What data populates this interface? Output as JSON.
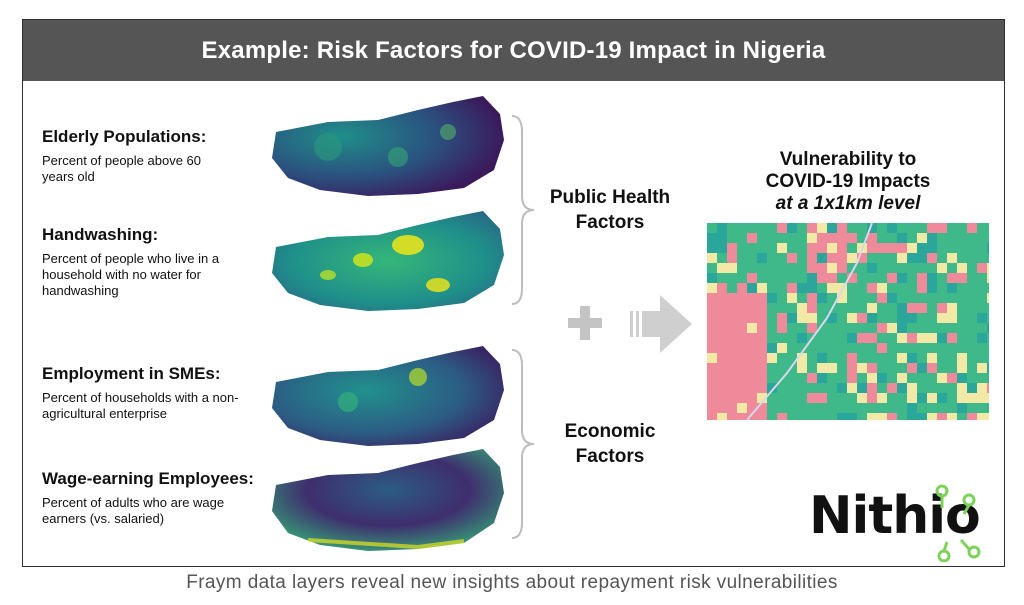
{
  "header": {
    "title": "Example: Risk Factors for COVID-19 Impact in Nigeria"
  },
  "factors": [
    {
      "title": "Elderly Populations:",
      "desc": "Percent of people above 60 years old"
    },
    {
      "title": "Handwashing:",
      "desc": "Percent of people who live in a household with no water for handwashing"
    },
    {
      "title": "Employment in SMEs:",
      "desc": "Percent of households with a non-agricultural enterprise"
    },
    {
      "title": "Wage-earning Employees:",
      "desc": "Percent of adults who are wage earners (vs. salaried)"
    }
  ],
  "groups": {
    "public_health": {
      "line1": "Public Health",
      "line2": "Factors"
    },
    "economic": {
      "line1": "Economic",
      "line2": "Factors"
    }
  },
  "vulnerability": {
    "line1": "Vulnerability to",
    "line2": "COVID-19 Impacts",
    "line3": "at a 1x1km level"
  },
  "logo": {
    "text": "Nithio"
  },
  "caption": "Fraym data layers reveal new insights about repayment risk vulnerabilities",
  "colors": {
    "header_bg": "#555555",
    "map_dark": "#3b1a5c",
    "map_teal": "#1f8f8a",
    "map_yellow": "#e6e21c",
    "grid_green": "#3fb88a",
    "grid_pink": "#ee8a9a",
    "grid_cream": "#f3e9a6",
    "logo_green": "#7dd35a"
  },
  "icons": [
    "plus-icon",
    "arrow-right-icon",
    "brace-icon"
  ]
}
